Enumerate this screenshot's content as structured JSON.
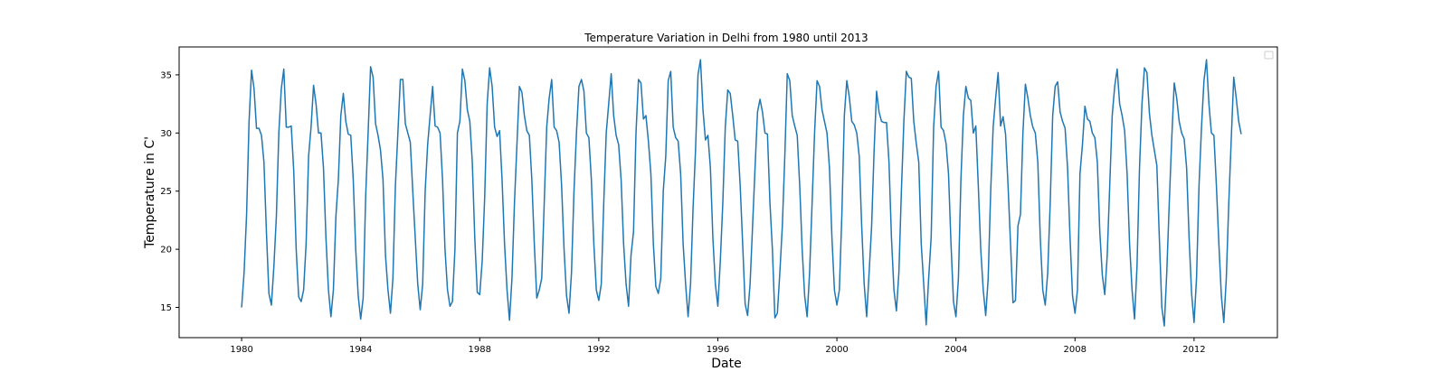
{
  "chart_data": {
    "type": "line",
    "title": "Temperature Variation in Delhi from 1980 until 2013",
    "xlabel": "Date",
    "ylabel": "Temperature in C'",
    "xlim": [
      1977.9,
      2014.8
    ],
    "ylim": [
      12.4,
      37.4
    ],
    "x_ticks": [
      1980,
      1984,
      1988,
      1992,
      1996,
      2000,
      2004,
      2008,
      2012
    ],
    "y_ticks": [
      15,
      20,
      25,
      30,
      35
    ],
    "grid": false,
    "legend": {
      "placement": "top-right",
      "entries": []
    },
    "series": [
      {
        "color": "#1f77b4",
        "x": [
          1980.0,
          1980.083,
          1980.167,
          1980.25,
          1980.333,
          1980.417,
          1980.5,
          1980.583,
          1980.667,
          1980.75,
          1980.833,
          1980.917,
          1981.0,
          1981.083,
          1981.167,
          1981.25,
          1981.333,
          1981.417,
          1981.5,
          1981.583,
          1981.667,
          1981.75,
          1981.833,
          1981.917,
          1982.0,
          1982.083,
          1982.167,
          1982.25,
          1982.333,
          1982.417,
          1982.5,
          1982.583,
          1982.667,
          1982.75,
          1982.833,
          1982.917,
          1983.0,
          1983.083,
          1983.167,
          1983.25,
          1983.333,
          1983.417,
          1983.5,
          1983.583,
          1983.667,
          1983.75,
          1983.833,
          1983.917,
          1984.0,
          1984.083,
          1984.167,
          1984.25,
          1984.333,
          1984.417,
          1984.5,
          1984.583,
          1984.667,
          1984.75,
          1984.833,
          1984.917,
          1985.0,
          1985.083,
          1985.167,
          1985.25,
          1985.333,
          1985.417,
          1985.5,
          1985.583,
          1985.667,
          1985.75,
          1985.833,
          1985.917,
          1986.0,
          1986.083,
          1986.167,
          1986.25,
          1986.333,
          1986.417,
          1986.5,
          1986.583,
          1986.667,
          1986.75,
          1986.833,
          1986.917,
          1987.0,
          1987.083,
          1987.167,
          1987.25,
          1987.333,
          1987.417,
          1987.5,
          1987.583,
          1987.667,
          1987.75,
          1987.833,
          1987.917,
          1988.0,
          1988.083,
          1988.167,
          1988.25,
          1988.333,
          1988.417,
          1988.5,
          1988.583,
          1988.667,
          1988.75,
          1988.833,
          1988.917,
          1989.0,
          1989.083,
          1989.167,
          1989.25,
          1989.333,
          1989.417,
          1989.5,
          1989.583,
          1989.667,
          1989.75,
          1989.833,
          1989.917,
          1990.0,
          1990.083,
          1990.167,
          1990.25,
          1990.333,
          1990.417,
          1990.5,
          1990.583,
          1990.667,
          1990.75,
          1990.833,
          1990.917,
          1991.0,
          1991.083,
          1991.167,
          1991.25,
          1991.333,
          1991.417,
          1991.5,
          1991.583,
          1991.667,
          1991.75,
          1991.833,
          1991.917,
          1992.0,
          1992.083,
          1992.167,
          1992.25,
          1992.333,
          1992.417,
          1992.5,
          1992.583,
          1992.667,
          1992.75,
          1992.833,
          1992.917,
          1993.0,
          1993.083,
          1993.167,
          1993.25,
          1993.333,
          1993.417,
          1993.5,
          1993.583,
          1993.667,
          1993.75,
          1993.833,
          1993.917,
          1994.0,
          1994.083,
          1994.167,
          1994.25,
          1994.333,
          1994.417,
          1994.5,
          1994.583,
          1994.667,
          1994.75,
          1994.833,
          1994.917,
          1995.0,
          1995.083,
          1995.167,
          1995.25,
          1995.333,
          1995.417,
          1995.5,
          1995.583,
          1995.667,
          1995.75,
          1995.833,
          1995.917,
          1996.0,
          1996.083,
          1996.167,
          1996.25,
          1996.333,
          1996.417,
          1996.5,
          1996.583,
          1996.667,
          1996.75,
          1996.833,
          1996.917,
          1997.0,
          1997.083,
          1997.167,
          1997.25,
          1997.333,
          1997.417,
          1997.5,
          1997.583,
          1997.667,
          1997.75,
          1997.833,
          1997.917,
          1998.0,
          1998.083,
          1998.167,
          1998.25,
          1998.333,
          1998.417,
          1998.5,
          1998.583,
          1998.667,
          1998.75,
          1998.833,
          1998.917,
          1999.0,
          1999.083,
          1999.167,
          1999.25,
          1999.333,
          1999.417,
          1999.5,
          1999.583,
          1999.667,
          1999.75,
          1999.833,
          1999.917,
          2000.0,
          2000.083,
          2000.167,
          2000.25,
          2000.333,
          2000.417,
          2000.5,
          2000.583,
          2000.667,
          2000.75,
          2000.833,
          2000.917,
          2001.0,
          2001.083,
          2001.167,
          2001.25,
          2001.333,
          2001.417,
          2001.5,
          2001.583,
          2001.667,
          2001.75,
          2001.833,
          2001.917,
          2002.0,
          2002.083,
          2002.167,
          2002.25,
          2002.333,
          2002.417,
          2002.5,
          2002.583,
          2002.667,
          2002.75,
          2002.833,
          2002.917,
          2003.0,
          2003.083,
          2003.167,
          2003.25,
          2003.333,
          2003.417,
          2003.5,
          2003.583,
          2003.667,
          2003.75,
          2003.833,
          2003.917,
          2004.0,
          2004.083,
          2004.167,
          2004.25,
          2004.333,
          2004.417,
          2004.5,
          2004.583,
          2004.667,
          2004.75,
          2004.833,
          2004.917,
          2005.0,
          2005.083,
          2005.167,
          2005.25,
          2005.333,
          2005.417,
          2005.5,
          2005.583,
          2005.667,
          2005.75,
          2005.833,
          2005.917,
          2006.0,
          2006.083,
          2006.167,
          2006.25,
          2006.333,
          2006.417,
          2006.5,
          2006.583,
          2006.667,
          2006.75,
          2006.833,
          2006.917,
          2007.0,
          2007.083,
          2007.167,
          2007.25,
          2007.333,
          2007.417,
          2007.5,
          2007.583,
          2007.667,
          2007.75,
          2007.833,
          2007.917,
          2008.0,
          2008.083,
          2008.167,
          2008.25,
          2008.333,
          2008.417,
          2008.5,
          2008.583,
          2008.667,
          2008.75,
          2008.833,
          2008.917,
          2009.0,
          2009.083,
          2009.167,
          2009.25,
          2009.333,
          2009.417,
          2009.5,
          2009.583,
          2009.667,
          2009.75,
          2009.833,
          2009.917,
          2010.0,
          2010.083,
          2010.167,
          2010.25,
          2010.333,
          2010.417,
          2010.5,
          2010.583,
          2010.667,
          2010.75,
          2010.833,
          2010.917,
          2011.0,
          2011.083,
          2011.167,
          2011.25,
          2011.333,
          2011.417,
          2011.5,
          2011.583,
          2011.667,
          2011.75,
          2011.833,
          2011.917,
          2012.0,
          2012.083,
          2012.167,
          2012.25,
          2012.333,
          2012.417,
          2012.5,
          2012.583,
          2012.667,
          2012.75,
          2012.833,
          2012.917,
          2013.0,
          2013.083,
          2013.167,
          2013.25,
          2013.333,
          2013.417,
          2013.5,
          2013.583
        ],
        "y": [
          15.0,
          18.0,
          23.0,
          31.0,
          35.4,
          33.8,
          30.4,
          30.4,
          29.8,
          27.5,
          21.5,
          16.2,
          15.2,
          18.5,
          22.8,
          30.0,
          33.8,
          35.5,
          30.5,
          30.5,
          30.6,
          26.8,
          20.0,
          15.9,
          15.5,
          16.5,
          20.5,
          28.0,
          30.5,
          34.1,
          32.5,
          30.0,
          30.0,
          27.0,
          21.0,
          16.5,
          14.2,
          16.5,
          22.8,
          26.0,
          31.5,
          33.4,
          31.0,
          29.9,
          29.8,
          26.0,
          20.0,
          16.0,
          14.0,
          15.8,
          24.5,
          30.0,
          35.7,
          34.8,
          30.8,
          29.8,
          28.5,
          26.0,
          19.5,
          16.5,
          14.5,
          17.5,
          25.5,
          30.0,
          34.6,
          34.6,
          30.8,
          30.0,
          29.2,
          25.0,
          21.0,
          17.0,
          14.8,
          17.0,
          25.0,
          29.0,
          31.5,
          34.0,
          30.6,
          30.5,
          30.0,
          26.0,
          20.0,
          16.5,
          15.1,
          15.5,
          20.0,
          30.0,
          31.0,
          35.5,
          34.5,
          32.0,
          31.0,
          27.5,
          21.0,
          16.3,
          16.1,
          19.0,
          24.5,
          32.5,
          35.6,
          34.0,
          30.5,
          29.7,
          30.2,
          26.0,
          20.5,
          16.5,
          13.9,
          17.5,
          24.0,
          29.0,
          34.0,
          33.5,
          31.5,
          30.2,
          29.8,
          26.0,
          20.5,
          15.8,
          16.5,
          17.5,
          24.0,
          30.5,
          33.0,
          34.6,
          30.5,
          30.2,
          29.2,
          25.5,
          20.0,
          16.0,
          14.5,
          18.0,
          25.0,
          30.0,
          34.0,
          34.6,
          33.6,
          30.0,
          29.6,
          26.0,
          20.5,
          16.5,
          15.6,
          17.0,
          24.0,
          30.0,
          32.5,
          35.1,
          31.5,
          29.8,
          29.0,
          26.0,
          20.5,
          17.0,
          15.1,
          19.5,
          21.5,
          30.0,
          34.6,
          34.3,
          31.2,
          31.5,
          29.3,
          26.5,
          20.5,
          16.8,
          16.2,
          17.5,
          25.0,
          28.0,
          34.5,
          35.3,
          30.5,
          29.6,
          29.3,
          26.5,
          20.5,
          17.0,
          14.2,
          17.0,
          23.5,
          28.5,
          35.0,
          36.3,
          32.0,
          29.4,
          29.8,
          27.0,
          21.0,
          17.0,
          15.1,
          19.0,
          24.0,
          30.5,
          33.7,
          33.4,
          31.5,
          29.4,
          29.3,
          25.5,
          20.5,
          15.3,
          14.3,
          17.0,
          22.0,
          27.0,
          31.8,
          32.9,
          31.8,
          30.0,
          29.9,
          24.0,
          20.0,
          14.1,
          14.5,
          18.0,
          22.0,
          28.0,
          35.1,
          34.5,
          31.5,
          30.6,
          29.8,
          25.5,
          20.0,
          16.0,
          14.2,
          18.0,
          24.0,
          30.0,
          34.5,
          34.0,
          32.0,
          31.0,
          30.0,
          27.0,
          21.0,
          16.5,
          15.2,
          16.5,
          23.0,
          31.5,
          34.5,
          33.1,
          31.0,
          30.7,
          30.0,
          28.0,
          22.0,
          17.0,
          14.2,
          18.0,
          22.0,
          28.5,
          33.6,
          31.8,
          31.0,
          30.9,
          30.9,
          27.5,
          21.0,
          16.5,
          14.7,
          18.0,
          25.0,
          31.0,
          35.3,
          34.8,
          34.7,
          31.0,
          29.1,
          27.5,
          20.5,
          17.0,
          13.5,
          17.5,
          21.0,
          30.5,
          34.0,
          35.3,
          30.5,
          30.2,
          29.1,
          26.5,
          20.5,
          15.5,
          14.2,
          17.5,
          26.0,
          31.5,
          34.0,
          33.0,
          32.8,
          30.0,
          30.6,
          25.5,
          20.0,
          16.5,
          14.3,
          17.5,
          25.0,
          30.5,
          33.0,
          35.2,
          30.6,
          31.4,
          29.9,
          25.5,
          20.5,
          15.4,
          15.6,
          22.0,
          23.0,
          30.0,
          34.2,
          33.0,
          31.5,
          30.5,
          30.0,
          27.5,
          21.0,
          16.5,
          15.2,
          18.0,
          24.0,
          31.5,
          34.0,
          34.4,
          31.8,
          31.0,
          30.4,
          27.0,
          21.0,
          16.0,
          14.5,
          16.5,
          26.5,
          29.0,
          32.3,
          31.2,
          31.0,
          30.0,
          29.6,
          27.5,
          21.5,
          17.8,
          16.1,
          19.5,
          25.5,
          31.5,
          34.0,
          35.5,
          32.5,
          31.5,
          30.2,
          26.5,
          20.5,
          16.5,
          14.0,
          18.5,
          27.0,
          32.5,
          35.6,
          35.2,
          31.7,
          29.8,
          28.5,
          27.2,
          21.0,
          15.0,
          13.4,
          18.0,
          24.0,
          29.5,
          34.3,
          33.0,
          31.0,
          30.0,
          29.5,
          27.0,
          21.0,
          16.2,
          13.7,
          17.5,
          25.5,
          30.5,
          34.5,
          36.3,
          32.5,
          30.0,
          29.8,
          25.5,
          20.5,
          16.0,
          13.7,
          17.5,
          24.0,
          29.5,
          34.8,
          33.0,
          31.0,
          29.9
        ]
      }
    ]
  }
}
